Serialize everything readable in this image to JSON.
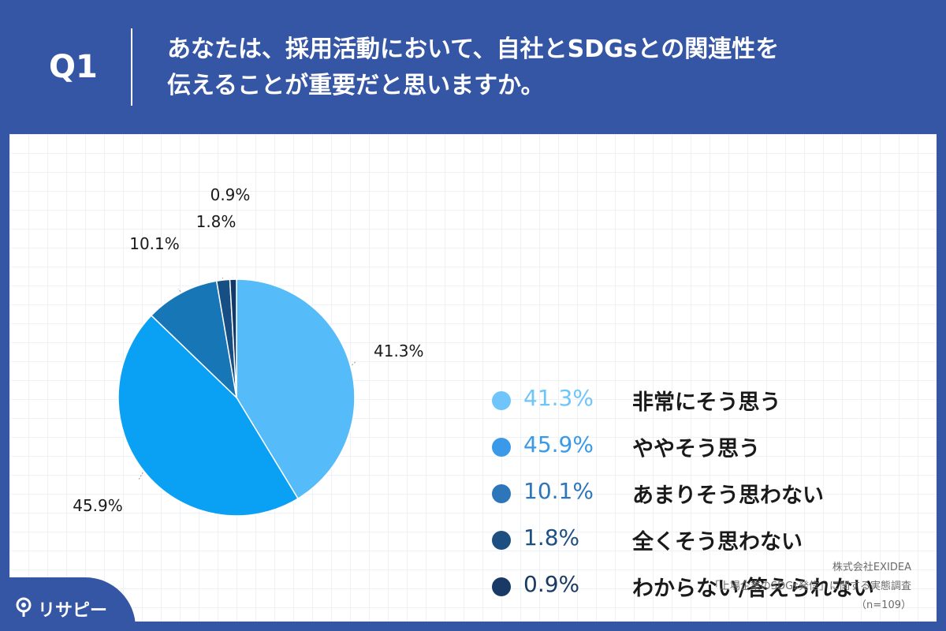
{
  "question": {
    "label": "Q1",
    "line1": "あなたは、採用活動において、自社とSDGsとの関連性を",
    "line2": "伝えることが重要だと思いますか。"
  },
  "chart_data": {
    "type": "pie",
    "categories": [
      "非常にそう思う",
      "ややそう思う",
      "あまりそう思わない",
      "全くそう思わない",
      "わからない/答えられない"
    ],
    "values": [
      41.3,
      45.9,
      10.1,
      1.8,
      0.9
    ],
    "value_labels": [
      "41.3%",
      "45.9%",
      "10.1%",
      "1.8%",
      "0.9%"
    ],
    "colors": [
      "#56bbf9",
      "#0aa0f4",
      "#1676b6",
      "#174f85",
      "#123a68"
    ],
    "legend_colors": [
      "#6fc5fa",
      "#3a9ae8",
      "#2c76b9",
      "#1e4f81",
      "#193a66"
    ],
    "legend_position": "right"
  },
  "legend": [
    {
      "pct": "41.3%",
      "label": "非常にそう思う"
    },
    {
      "pct": "45.9%",
      "label": "ややそう思う"
    },
    {
      "pct": "10.1%",
      "label": "あまりそう思わない"
    },
    {
      "pct": "1.8%",
      "label": "全くそう思わない"
    },
    {
      "pct": "0.9%",
      "label": "わからない/答えられない"
    }
  ],
  "source": {
    "company": "株式会社EXIDEA",
    "survey": "「上場企業のSDGs発信」に関する実態調査",
    "sample": "（n=109）"
  },
  "logo": {
    "text": "リサピー"
  }
}
